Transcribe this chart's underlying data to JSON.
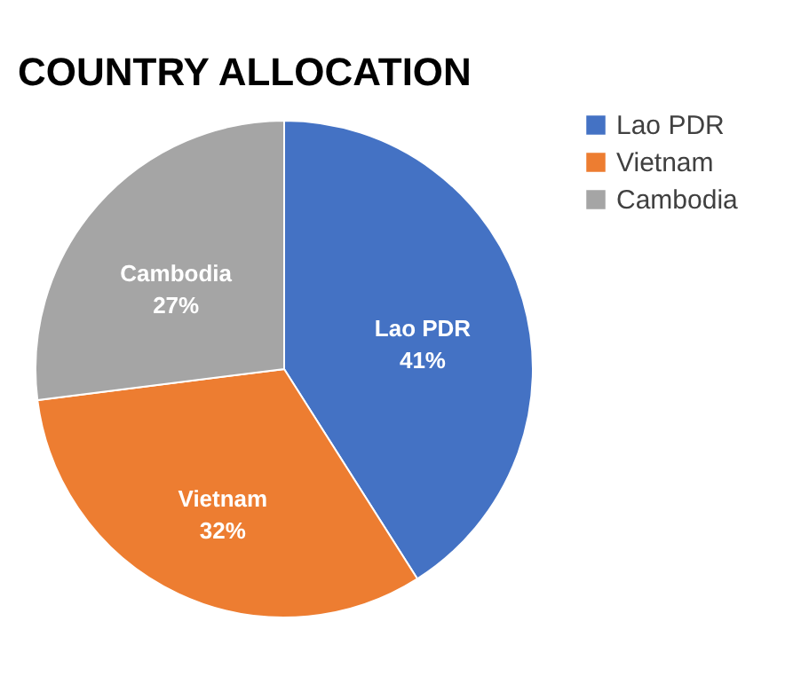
{
  "chart_data": {
    "type": "pie",
    "title": "COUNTRY ALLOCATION",
    "categories": [
      "Lao PDR",
      "Vietnam",
      "Cambodia"
    ],
    "values": [
      41,
      32,
      27
    ],
    "value_labels": [
      "41%",
      "32%",
      "27%"
    ],
    "colors": [
      "#4472c4",
      "#ed7d31",
      "#a5a5a5"
    ],
    "legend": "right"
  }
}
